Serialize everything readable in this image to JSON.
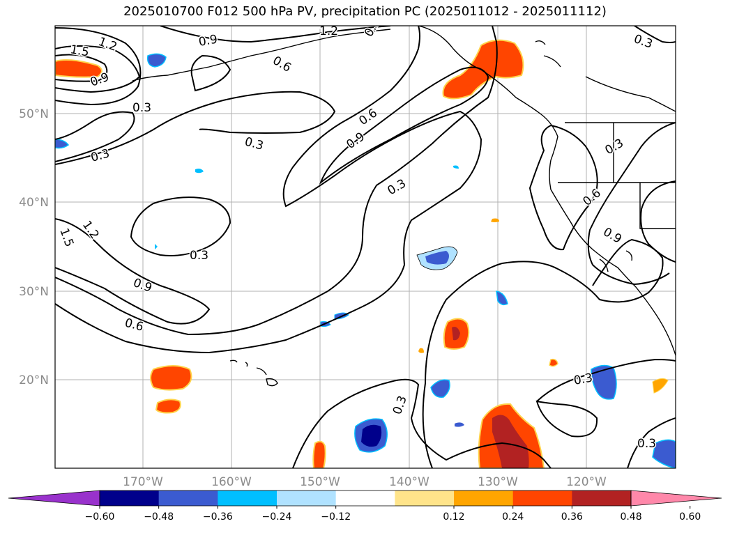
{
  "title": "2025010700 F012 500 hPa PV, precipitation PC (2025011012 - 2025011112)",
  "lat_labels": [
    "50°N",
    "40°N",
    "30°N",
    "20°N"
  ],
  "lon_labels": [
    "170°W",
    "160°W",
    "150°W",
    "140°W",
    "130°W",
    "120°W"
  ],
  "colorbar": {
    "ticks": [
      "−0.60",
      "−0.48",
      "−0.36",
      "−0.24",
      "−0.12",
      "0.12",
      "0.24",
      "0.36",
      "0.48",
      "0.60"
    ],
    "colors": [
      "#9932cc",
      "#00008b",
      "#3b5bd0",
      "#00bfff",
      "#b0e2ff",
      "#ffffff",
      "#ffe48a",
      "#ffa500",
      "#ff4500",
      "#b22222",
      "#ff88aa"
    ]
  },
  "contour_labels": [
    "1.2",
    "1.5",
    "0.9",
    "0.3",
    "0.9",
    "0.6",
    "1.2",
    "0.9",
    "0.3",
    "0.3",
    "0.3",
    "0.6",
    "0.9",
    "0.3",
    "0.3",
    "0.6",
    "0.9",
    "1.5",
    "1.2",
    "0.3",
    "0.9",
    "0.6",
    "0.3",
    "0.3",
    "0.3"
  ]
}
